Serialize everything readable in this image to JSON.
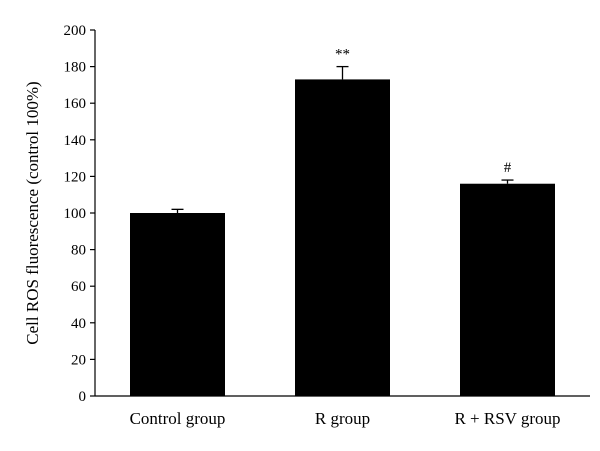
{
  "chart_data": {
    "type": "bar",
    "ylabel": "Cell ROS fluorescence (control 100%)",
    "ylim": [
      0,
      200
    ],
    "yticks": [
      0,
      20,
      40,
      60,
      80,
      100,
      120,
      140,
      160,
      180,
      200
    ],
    "categories": [
      "Control group",
      "R group",
      "R + RSV group"
    ],
    "values": [
      100,
      173,
      116
    ],
    "error": [
      2,
      7,
      2
    ],
    "annotations": [
      "",
      "**",
      "#"
    ],
    "bar_color": "#000000",
    "grid": false
  }
}
